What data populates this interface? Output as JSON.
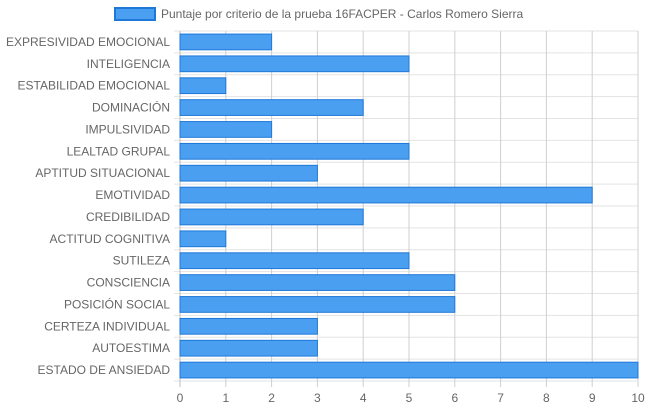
{
  "chart_data": {
    "type": "bar",
    "orientation": "horizontal",
    "categories": [
      "EXPRESIVIDAD EMOCIONAL",
      "INTELIGENCIA",
      "ESTABILIDAD EMOCIONAL",
      "DOMINACIÓN",
      "IMPULSIVIDAD",
      "LEALTAD GRUPAL",
      "APTITUD SITUACIONAL",
      "EMOTIVIDAD",
      "CREDIBILIDAD",
      "ACTITUD COGNITIVA",
      "SUTILEZA",
      "CONSCIENCIA",
      "POSICIÓN SOCIAL",
      "CERTEZA INDIVIDUAL",
      "AUTOESTIMA",
      "ESTADO DE ANSIEDAD"
    ],
    "series": [
      {
        "name": "Puntaje por criterio de la prueba 16FACPER - Carlos Romero Sierra",
        "values": [
          2,
          5,
          1,
          4,
          2,
          5,
          3,
          9,
          4,
          1,
          5,
          6,
          6,
          3,
          3,
          10
        ],
        "color": "#4a9ff0",
        "border_color": "#1e78d8"
      }
    ],
    "xlim": [
      0,
      10
    ],
    "xticks": [
      "0",
      "1",
      "2",
      "3",
      "4",
      "5",
      "6",
      "7",
      "8",
      "9",
      "10"
    ],
    "grid": true,
    "legend_position": "top"
  }
}
